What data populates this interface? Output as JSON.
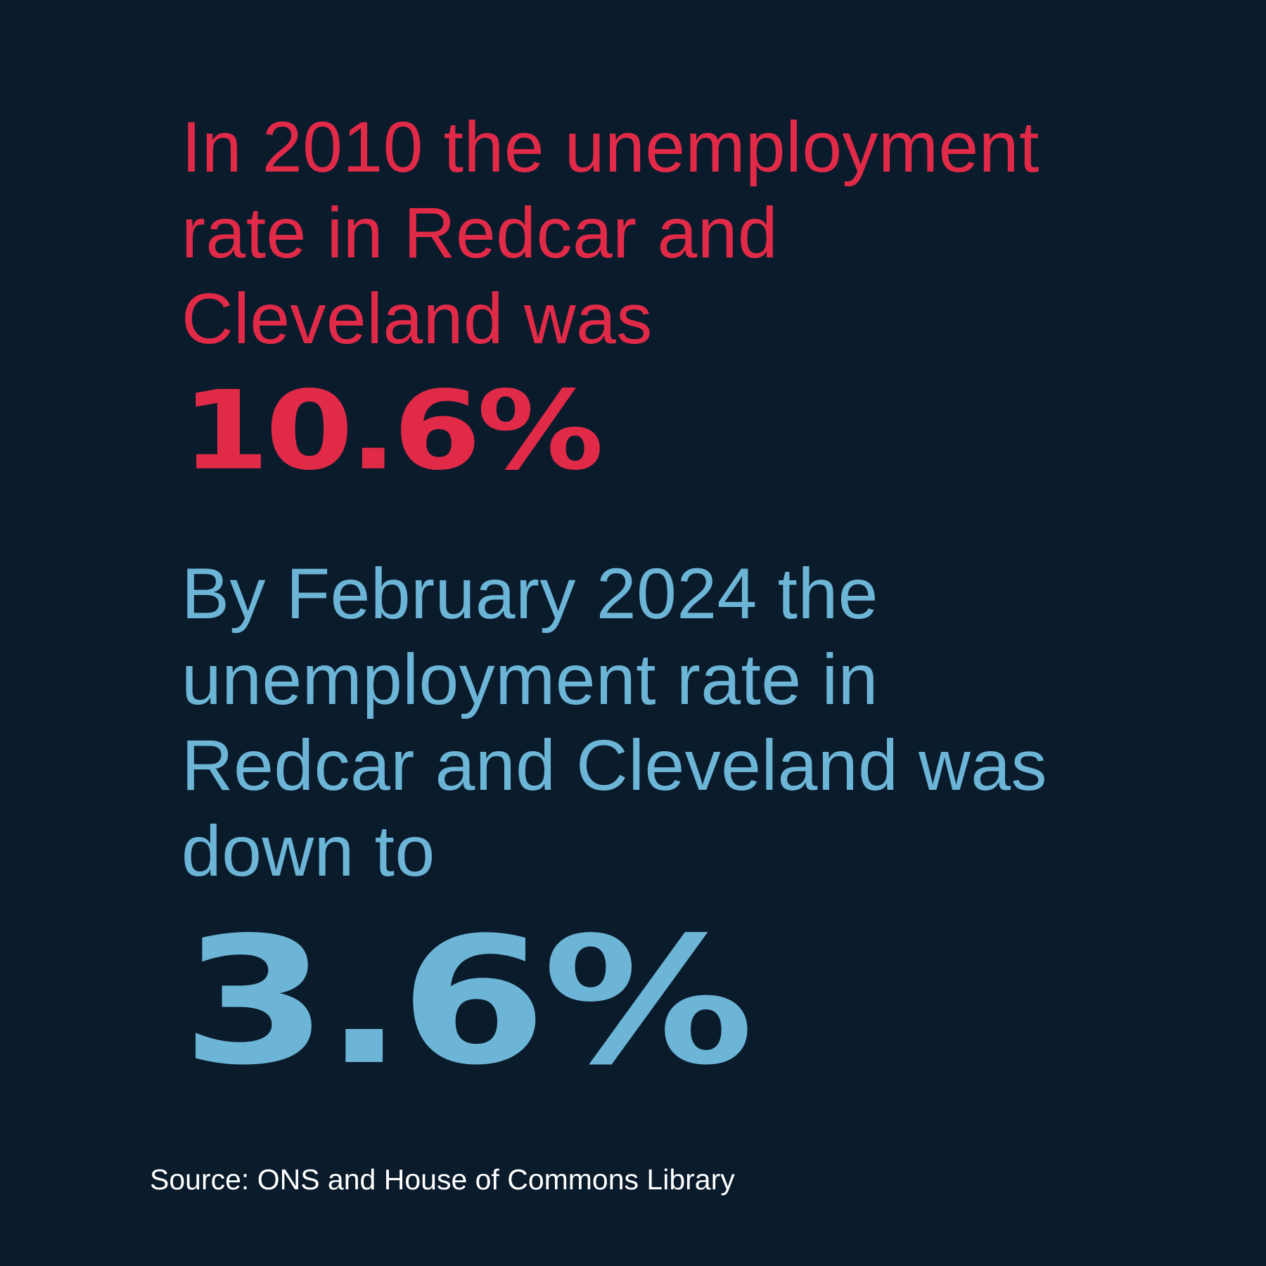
{
  "colors": {
    "background": "#0a1b2c",
    "accent_red": "#e12a48",
    "accent_blue": "#6cb5d6",
    "source_text": "#ffffff"
  },
  "stat_2010": {
    "text": "In 2010 the unemployment\nrate in Redcar and\nCleveland was",
    "value": "10.6%"
  },
  "stat_2024": {
    "text": "By February 2024 the\nunemployment rate in\nRedcar and Cleveland was\ndown to",
    "value": "3.6%"
  },
  "source": "Source: ONS and House of Commons Library"
}
